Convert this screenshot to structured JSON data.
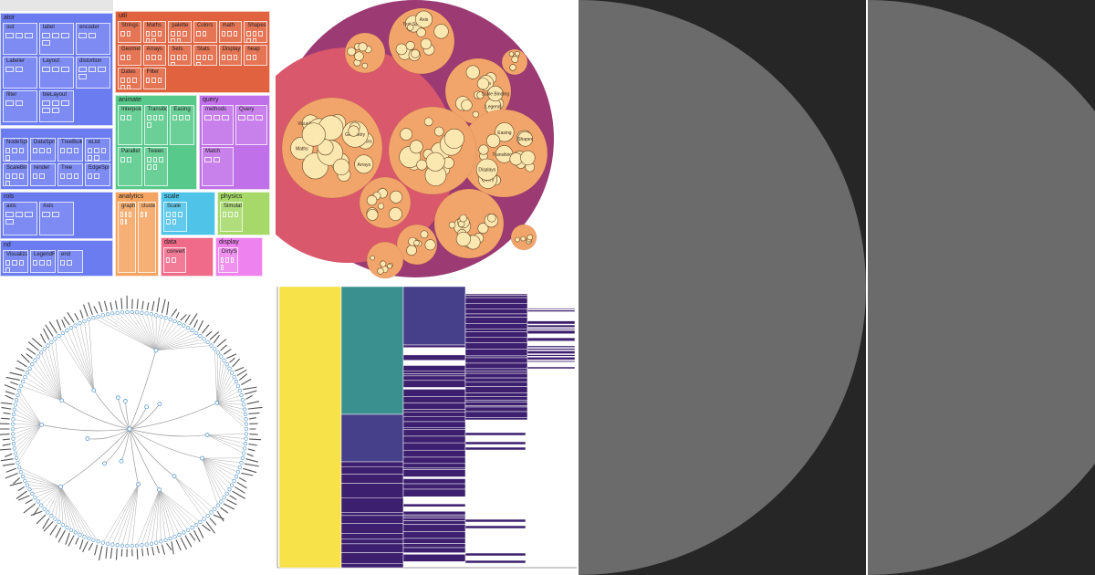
{
  "treemap": {
    "groups": [
      {
        "id": "g-vis-1",
        "color": "#6b7bf0",
        "label": "ator",
        "children": [
          {
            "label": "out"
          },
          {
            "label": "label"
          },
          {
            "label": "encoder"
          },
          {
            "label": "Labeler"
          },
          {
            "label": "Layout"
          },
          {
            "label": "distortion"
          },
          {
            "label": "filter"
          },
          {
            "label": "bleLayout"
          }
        ]
      },
      {
        "id": "g-vis-2",
        "color": "#6b7bf0",
        "label": "",
        "children": [
          {
            "label": "NodeSprite"
          },
          {
            "label": "DataSprite"
          },
          {
            "label": "TreeBuilder"
          },
          {
            "label": "eList"
          },
          {
            "label": "ScaleBinding"
          },
          {
            "label": "render"
          },
          {
            "label": "Tree"
          },
          {
            "label": "EdgeSprite"
          }
        ]
      },
      {
        "id": "g-vis-3",
        "color": "#6b7bf0",
        "label": "rols",
        "children": [
          {
            "label": "axis"
          },
          {
            "label": "Axis"
          }
        ]
      },
      {
        "id": "g-vis-4",
        "color": "#6b7bf0",
        "label": "nd",
        "children": [
          {
            "label": "Visualization"
          },
          {
            "label": "LegendRange"
          },
          {
            "label": "end"
          }
        ]
      },
      {
        "id": "g-util",
        "color": "#e0623e",
        "label": "util",
        "children": [
          {
            "label": "Strings"
          },
          {
            "label": "Maths"
          },
          {
            "label": "palette"
          },
          {
            "label": "Colors"
          },
          {
            "label": "math"
          },
          {
            "label": "Shapes"
          },
          {
            "label": "Geometry"
          },
          {
            "label": "Arrays"
          },
          {
            "label": "Sets"
          },
          {
            "label": "Stats"
          },
          {
            "label": "Displays"
          },
          {
            "label": "heap"
          },
          {
            "label": "Dates"
          },
          {
            "label": "Filter"
          }
        ]
      },
      {
        "id": "g-animate",
        "color": "#57c98a",
        "label": "animate",
        "children": [
          {
            "label": "Interpolate"
          },
          {
            "label": "Transitioner"
          },
          {
            "label": "Easing"
          },
          {
            "label": "Parallel"
          },
          {
            "label": "Tween"
          }
        ]
      },
      {
        "id": "g-query",
        "color": "#c070e8",
        "label": "query",
        "children": [
          {
            "label": "methods"
          },
          {
            "label": "Query"
          },
          {
            "label": "Match"
          }
        ]
      },
      {
        "id": "g-analytics",
        "color": "#f5a562",
        "label": "analytics",
        "children": [
          {
            "label": "graph"
          },
          {
            "label": "cluster"
          }
        ]
      },
      {
        "id": "g-scale",
        "color": "#4fc3e8",
        "label": "scale",
        "children": [
          {
            "label": "Scale"
          }
        ]
      },
      {
        "id": "g-physics",
        "color": "#a6d96a",
        "label": "physics",
        "children": [
          {
            "label": "Simulation"
          }
        ]
      },
      {
        "id": "g-data",
        "color": "#f06a8a",
        "label": "data",
        "children": [
          {
            "label": "converters"
          }
        ]
      },
      {
        "id": "g-display",
        "color": "#ee82ee",
        "label": "display",
        "children": [
          {
            "label": "DirtySprite"
          }
        ]
      }
    ]
  },
  "circle_pack": {
    "bg_color": "#9c3a73",
    "ring_color": "#d9586b",
    "group_color": "#f2a56a",
    "leaf_color": "#fbe7b0",
    "labels": [
      "Text Sprite",
      "Axis",
      "Legend",
      "Data",
      "Scale Binding",
      "Tree",
      "Transitioner",
      "Easing",
      "Query",
      "Displays",
      "Strings",
      "Shapes",
      "Colors",
      "Maths",
      "Geometry",
      "Visualization",
      "Arrays",
      "Sort"
    ]
  },
  "radial_tree": {
    "link_color": "#b0b0b0",
    "node_color": "#5b9bd5"
  },
  "icicle": {
    "colors": [
      "#f7e24a",
      "#3a8f8f",
      "#463f8a",
      "#3c1f6e"
    ]
  },
  "dark_panels": {
    "bg_color": "#262626",
    "shape_color": "#6b6b6b"
  }
}
